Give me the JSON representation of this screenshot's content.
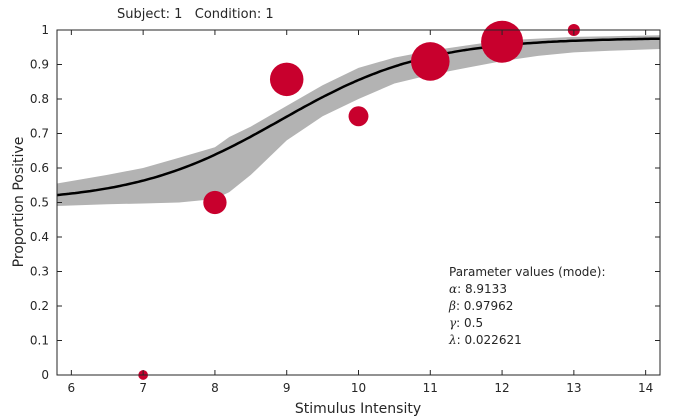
{
  "title": "Subject: 1   Condition: 1",
  "chart_data": {
    "type": "scatter",
    "title": "Subject: 1   Condition: 1",
    "xlabel": "Stimulus Intensity",
    "ylabel": "Proportion Positive",
    "xlim": [
      5.8,
      14.2
    ],
    "ylim": [
      0,
      1
    ],
    "x_ticks": [
      6,
      7,
      8,
      9,
      10,
      11,
      12,
      13,
      14
    ],
    "y_ticks": [
      0,
      0.1,
      0.2,
      0.3,
      0.4,
      0.5,
      0.6,
      0.7,
      0.8,
      0.9,
      1
    ],
    "y_tick_labels": [
      "0",
      "0.1",
      "0.2",
      "0.3",
      "0.4",
      "0.5",
      "0.6",
      "0.7",
      "0.8",
      "0.9",
      "1"
    ],
    "grid": false,
    "colors": {
      "points": "#c8002d",
      "fit_line": "#000000",
      "band": "#b3b3b3",
      "axes": "#262626"
    },
    "observed": {
      "x": [
        7,
        8,
        9,
        10,
        11,
        12,
        13
      ],
      "proportion": [
        0.0,
        0.5,
        0.857,
        0.75,
        0.909,
        0.966,
        1.0
      ],
      "relative_weight": [
        0.05,
        0.45,
        0.75,
        0.35,
        0.9,
        1.0,
        0.12
      ]
    },
    "fit": {
      "function": "logistic",
      "alpha": 8.9133,
      "beta": 0.97962,
      "gamma": 0.5,
      "lambda": 0.022621
    },
    "credible_band": {
      "x": [
        5.8,
        6.5,
        7.0,
        7.5,
        8.0,
        8.2,
        8.5,
        9.0,
        9.5,
        10.0,
        10.5,
        11.0,
        11.5,
        12.0,
        12.5,
        13.0,
        13.5,
        14.2
      ],
      "lower": [
        0.49,
        0.495,
        0.497,
        0.5,
        0.51,
        0.53,
        0.58,
        0.68,
        0.75,
        0.8,
        0.845,
        0.87,
        0.89,
        0.91,
        0.925,
        0.935,
        0.94,
        0.945
      ],
      "upper": [
        0.555,
        0.58,
        0.6,
        0.63,
        0.66,
        0.69,
        0.72,
        0.78,
        0.84,
        0.89,
        0.92,
        0.94,
        0.955,
        0.97,
        0.975,
        0.98,
        0.982,
        0.985
      ]
    },
    "annotation": {
      "heading": "Parameter values (mode):",
      "lines": [
        {
          "symbol": "α",
          "value": ": 8.9133"
        },
        {
          "symbol": "β",
          "value": ": 0.97962"
        },
        {
          "symbol": "γ",
          "value": ": 0.5"
        },
        {
          "symbol": "λ",
          "value": ": 0.022621"
        }
      ]
    }
  }
}
